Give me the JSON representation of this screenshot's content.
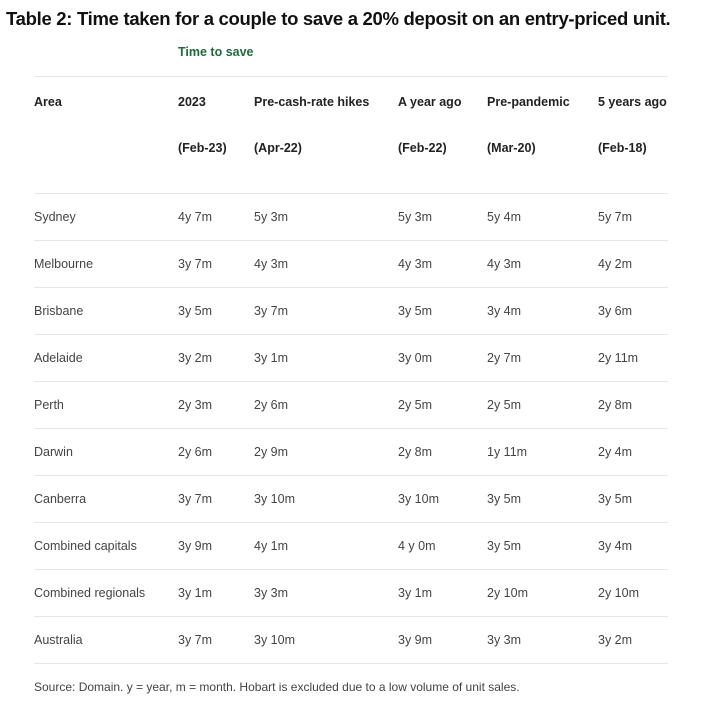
{
  "title": "Table 2: Time taken for a couple to save a 20% deposit on an entry-priced unit.",
  "subtitle": "Time to save",
  "header": {
    "columns": [
      "Area",
      "2023",
      "Pre-cash-rate hikes",
      "A year ago",
      "Pre-pandemic",
      "5 years ago"
    ],
    "dates": [
      "",
      "(Feb-23)",
      "(Apr-22)",
      "(Feb-22)",
      "(Mar-20)",
      "(Feb-18)"
    ]
  },
  "rows": [
    [
      "Sydney",
      "4y 7m",
      "5y 3m",
      "5y 3m",
      "5y 4m",
      "5y 7m"
    ],
    [
      "Melbourne",
      "3y 7m",
      "4y 3m",
      "4y 3m",
      "4y 3m",
      "4y 2m"
    ],
    [
      "Brisbane",
      "3y 5m",
      "3y 7m",
      "3y 5m",
      "3y 4m",
      "3y 6m"
    ],
    [
      "Adelaide",
      "3y 2m",
      "3y 1m",
      "3y 0m",
      "2y 7m",
      "2y 11m"
    ],
    [
      "Perth",
      "2y 3m",
      "2y 6m",
      "2y 5m",
      "2y 5m",
      "2y 8m"
    ],
    [
      "Darwin",
      "2y 6m",
      "2y 9m",
      "2y 8m",
      "1y 11m",
      "2y 4m"
    ],
    [
      "Canberra",
      "3y 7m",
      "3y 10m",
      "3y 10m",
      "3y 5m",
      "3y 5m"
    ],
    [
      "Combined capitals",
      "3y 9m",
      "4y 1m",
      "4 y 0m",
      "3y 5m",
      "3y 4m"
    ],
    [
      "Combined regionals",
      "3y 1m",
      "3y 3m",
      "3y 1m",
      "2y 10m",
      "2y 10m"
    ],
    [
      "Australia",
      "3y 7m",
      "3y 10m",
      "3y 9m",
      "3y 3m",
      "3y 2m"
    ]
  ],
  "source": "Source: Domain. y = year, m = month. Hobart is excluded due to a low volume of unit sales.",
  "colors": {
    "subtitle": "#1f6b3e",
    "rule": "#e6e6e6"
  }
}
